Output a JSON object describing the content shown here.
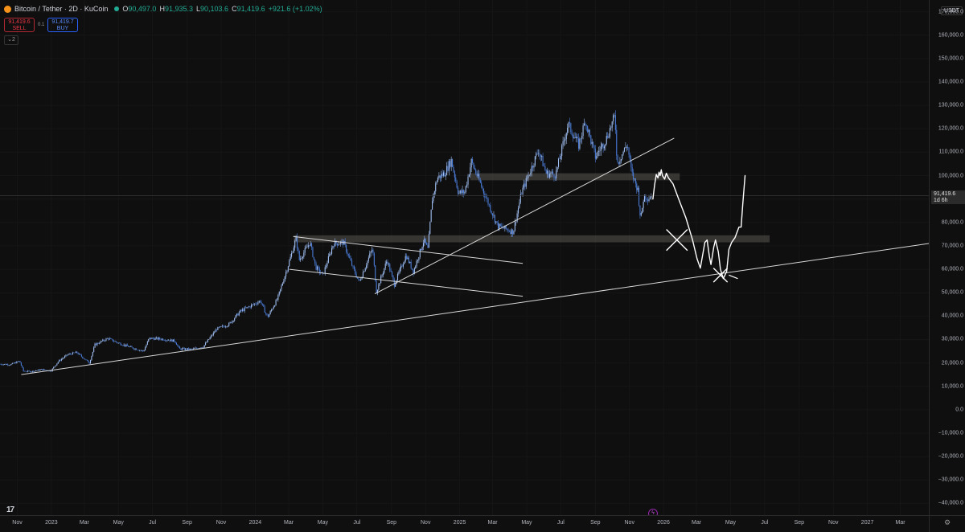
{
  "header": {
    "title": "Bitcoin / Tether · 2D · KuCoin",
    "open_label": "O",
    "open": "90,497.0",
    "high_label": "H",
    "high": "91,935.3",
    "low_label": "L",
    "low": "90,103.6",
    "close_label": "C",
    "close": "91,419.6",
    "change": "+921.6 (+1.02%)"
  },
  "trade": {
    "sell_price": "91,419.6",
    "sell_label": "SELL",
    "spread": "0.1",
    "buy_price": "91,419.7",
    "buy_label": "BUY"
  },
  "indicators_count": "2",
  "price_axis": {
    "unit": "USDT",
    "current_price": "91,419.6",
    "countdown": "1d 6h"
  },
  "colors": {
    "background": "#0f0f0f",
    "candle": "#4a7bd6",
    "candle_up": "#9fbdf0",
    "drawing": "#d8d8d8",
    "zone": "#5a5650",
    "freehand": "#ffffff",
    "sell": "#f23645",
    "buy": "#2962ff"
  },
  "icons": {
    "symbol": "bitcoin-icon",
    "logo": "tradingview-logo-icon",
    "settings": "gear-icon",
    "realtime": "lightning-icon"
  },
  "chart_data": {
    "type": "candlestick",
    "timeframe": "2D",
    "y_axis": {
      "min": -45000,
      "max": 175000,
      "ticks": [
        170000,
        160000,
        150000,
        140000,
        130000,
        120000,
        110000,
        100000,
        90000,
        80000,
        70000,
        60000,
        50000,
        40000,
        30000,
        20000,
        10000,
        0,
        -10000,
        -20000,
        -30000,
        -40000
      ],
      "tick_labels": [
        "170,000.0",
        "160,000.0",
        "150,000.0",
        "140,000.0",
        "130,000.0",
        "120,000.0",
        "110,000.0",
        "100,000.0",
        "90,000.0",
        "80,000.0",
        "70,000.0",
        "60,000.0",
        "50,000.0",
        "40,000.0",
        "30,000.0",
        "20,000.0",
        "10,000.0",
        "0.0",
        "−10,000.0",
        "−20,000.0",
        "−30,000.0",
        "−40,000.0"
      ]
    },
    "x_axis": {
      "start": "2022-10-01",
      "end": "2027-04-21",
      "ticks": [
        {
          "label": "Nov",
          "date": "2022-11-01"
        },
        {
          "label": "2023",
          "date": "2023-01-01"
        },
        {
          "label": "Mar",
          "date": "2023-03-01"
        },
        {
          "label": "May",
          "date": "2023-05-01"
        },
        {
          "label": "Jul",
          "date": "2023-07-01"
        },
        {
          "label": "Sep",
          "date": "2023-09-01"
        },
        {
          "label": "Nov",
          "date": "2023-11-01"
        },
        {
          "label": "2024",
          "date": "2024-01-01"
        },
        {
          "label": "Mar",
          "date": "2024-03-01"
        },
        {
          "label": "May",
          "date": "2024-05-01"
        },
        {
          "label": "Jul",
          "date": "2024-07-01"
        },
        {
          "label": "Sep",
          "date": "2024-09-01"
        },
        {
          "label": "Nov",
          "date": "2024-11-01"
        },
        {
          "label": "2025",
          "date": "2025-01-01"
        },
        {
          "label": "Mar",
          "date": "2025-03-01"
        },
        {
          "label": "May",
          "date": "2025-05-01"
        },
        {
          "label": "Jul",
          "date": "2025-07-01"
        },
        {
          "label": "Sep",
          "date": "2025-09-01"
        },
        {
          "label": "Nov",
          "date": "2025-11-01"
        },
        {
          "label": "2026",
          "date": "2026-01-01"
        },
        {
          "label": "Mar",
          "date": "2026-03-01"
        },
        {
          "label": "May",
          "date": "2026-05-01"
        },
        {
          "label": "Jul",
          "date": "2026-07-01"
        },
        {
          "label": "Sep",
          "date": "2026-09-01"
        },
        {
          "label": "Nov",
          "date": "2026-11-01"
        },
        {
          "label": "2027",
          "date": "2027-01-01"
        },
        {
          "label": "Mar",
          "date": "2027-03-01"
        }
      ]
    },
    "price_path": [
      [
        "2022-10-01",
        19500
      ],
      [
        "2022-10-20",
        19300
      ],
      [
        "2022-11-05",
        20800
      ],
      [
        "2022-11-12",
        16500
      ],
      [
        "2022-11-25",
        16300
      ],
      [
        "2022-12-15",
        17200
      ],
      [
        "2022-12-31",
        16550
      ],
      [
        "2023-01-14",
        20800
      ],
      [
        "2023-01-30",
        23500
      ],
      [
        "2023-02-15",
        24500
      ],
      [
        "2023-03-10",
        20000
      ],
      [
        "2023-03-20",
        27800
      ],
      [
        "2023-04-12",
        30500
      ],
      [
        "2023-05-01",
        28500
      ],
      [
        "2023-05-25",
        26500
      ],
      [
        "2023-06-15",
        25000
      ],
      [
        "2023-06-25",
        30500
      ],
      [
        "2023-07-15",
        30300
      ],
      [
        "2023-08-10",
        29400
      ],
      [
        "2023-08-18",
        26000
      ],
      [
        "2023-09-10",
        25800
      ],
      [
        "2023-09-30",
        27000
      ],
      [
        "2023-10-24",
        34500
      ],
      [
        "2023-11-15",
        36500
      ],
      [
        "2023-12-05",
        42000
      ],
      [
        "2024-01-10",
        46500
      ],
      [
        "2024-01-23",
        39500
      ],
      [
        "2024-02-10",
        47500
      ],
      [
        "2024-02-28",
        61000
      ],
      [
        "2024-03-14",
        73000
      ],
      [
        "2024-03-20",
        64000
      ],
      [
        "2024-04-08",
        71500
      ],
      [
        "2024-04-18",
        61000
      ],
      [
        "2024-05-01",
        57500
      ],
      [
        "2024-05-20",
        71000
      ],
      [
        "2024-06-07",
        71500
      ],
      [
        "2024-06-24",
        60500
      ],
      [
        "2024-07-05",
        54500
      ],
      [
        "2024-07-29",
        69000
      ],
      [
        "2024-08-05",
        50500
      ],
      [
        "2024-08-24",
        64000
      ],
      [
        "2024-09-06",
        53500
      ],
      [
        "2024-09-27",
        66000
      ],
      [
        "2024-10-10",
        59000
      ],
      [
        "2024-10-29",
        72500
      ],
      [
        "2024-11-05",
        68500
      ],
      [
        "2024-11-13",
        90000
      ],
      [
        "2024-11-22",
        99000
      ],
      [
        "2024-12-05",
        101000
      ],
      [
        "2024-12-17",
        106500
      ],
      [
        "2024-12-30",
        92500
      ],
      [
        "2025-01-10",
        93000
      ],
      [
        "2025-01-22",
        106000
      ],
      [
        "2025-02-03",
        99000
      ],
      [
        "2025-02-25",
        86000
      ],
      [
        "2025-03-10",
        78500
      ],
      [
        "2025-04-07",
        76000
      ],
      [
        "2025-04-22",
        93000
      ],
      [
        "2025-05-10",
        103500
      ],
      [
        "2025-05-22",
        111000
      ],
      [
        "2025-06-05",
        101000
      ],
      [
        "2025-06-22",
        100500
      ],
      [
        "2025-07-14",
        122000
      ],
      [
        "2025-08-02",
        113000
      ],
      [
        "2025-08-14",
        123500
      ],
      [
        "2025-09-01",
        108000
      ],
      [
        "2025-09-20",
        115500
      ],
      [
        "2025-10-06",
        125500
      ],
      [
        "2025-10-10",
        105000
      ],
      [
        "2025-10-28",
        113500
      ],
      [
        "2025-11-05",
        101000
      ],
      [
        "2025-11-16",
        94000
      ],
      [
        "2025-11-21",
        81000
      ],
      [
        "2025-11-27",
        91500
      ],
      [
        "2025-12-05",
        90500
      ],
      [
        "2025-12-10",
        91420
      ]
    ],
    "horizontal_zones": [
      {
        "start": "2025-01-20",
        "end": "2026-01-30",
        "low": 98000,
        "high": 101000
      },
      {
        "start": "2024-03-10",
        "end": "2026-07-10",
        "low": 71500,
        "high": 74500
      }
    ],
    "trend_lines": [
      {
        "from": [
          "2022-11-08",
          15000
        ],
        "to": [
          "2027-04-21",
          71000
        ]
      },
      {
        "from": [
          "2024-03-09",
          74000
        ],
        "to": [
          "2025-04-24",
          62500
        ]
      },
      {
        "from": [
          "2024-03-02",
          60000
        ],
        "to": [
          "2025-04-24",
          48500
        ]
      },
      {
        "from": [
          "2024-08-02",
          49500
        ],
        "to": [
          "2026-01-20",
          116000
        ]
      }
    ],
    "freehand_projection": [
      [
        "2025-12-13",
        90000
      ],
      [
        "2025-12-16",
        96000
      ],
      [
        "2025-12-19",
        100500
      ],
      [
        "2025-12-22",
        99000
      ],
      [
        "2025-12-24",
        101500
      ],
      [
        "2025-12-26",
        100000
      ],
      [
        "2025-12-28",
        102500
      ],
      [
        "2025-12-30",
        100000
      ],
      [
        "2026-01-03",
        98500
      ],
      [
        "2026-01-06",
        101000
      ],
      [
        "2026-01-10",
        99000
      ],
      [
        "2026-01-18",
        96500
      ],
      [
        "2026-01-29",
        89500
      ],
      [
        "2026-02-10",
        82000
      ],
      [
        "2026-02-22",
        72500
      ],
      [
        "2026-03-02",
        64500
      ],
      [
        "2026-03-08",
        60500
      ],
      [
        "2026-03-12",
        66000
      ],
      [
        "2026-03-16",
        71500
      ],
      [
        "2026-03-20",
        72500
      ],
      [
        "2026-03-24",
        65500
      ],
      [
        "2026-03-27",
        62000
      ],
      [
        "2026-04-01",
        69500
      ],
      [
        "2026-04-04",
        72500
      ],
      [
        "2026-04-09",
        67500
      ],
      [
        "2026-04-13",
        60000
      ],
      [
        "2026-04-18",
        56000
      ],
      [
        "2026-04-24",
        59000
      ],
      [
        "2026-04-28",
        68500
      ],
      [
        "2026-05-03",
        71500
      ],
      [
        "2026-05-09",
        73500
      ],
      [
        "2026-05-16",
        78000
      ],
      [
        "2026-05-20",
        78000
      ],
      [
        "2026-05-23",
        88000
      ],
      [
        "2026-05-27",
        100000
      ]
    ],
    "freehand_marks": [
      {
        "type": "x",
        "center": [
          "2026-01-25",
          72500
        ],
        "size": 4500
      },
      {
        "type": "x",
        "center": [
          "2026-04-13",
          57500
        ],
        "size": 3000
      }
    ],
    "freehand_segments": [
      {
        "from": [
          "2026-04-28",
          57500
        ],
        "to": [
          "2026-05-14",
          56000
        ]
      }
    ],
    "last_price": 91419.6
  }
}
